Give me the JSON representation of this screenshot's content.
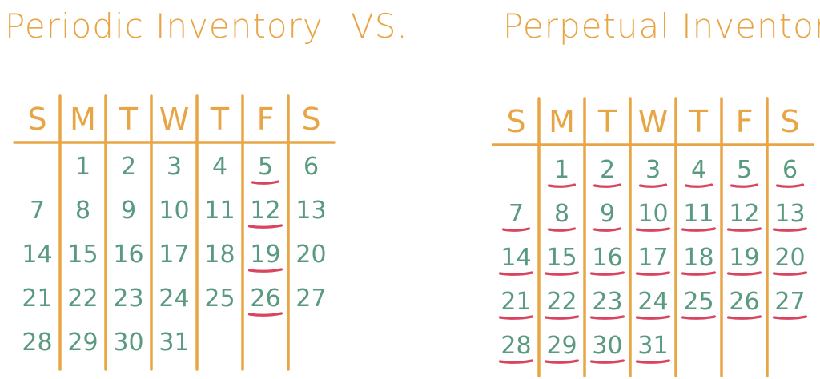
{
  "titles": {
    "left": "Periodic Inventory",
    "vs": "VS.",
    "right": "Perpetual Inventory"
  },
  "colors": {
    "header": "#e8a545",
    "numbers": "#5a9a80",
    "underline": "#d9455f"
  },
  "weekdays": [
    "S",
    "M",
    "T",
    "W",
    "T",
    "F",
    "S"
  ],
  "calendars": [
    {
      "id": "periodic",
      "first_weekday": 1,
      "days": 31,
      "underlined": [
        5,
        12,
        19,
        26
      ]
    },
    {
      "id": "perpetual",
      "first_weekday": 1,
      "days": 31,
      "underlined": [
        1,
        2,
        3,
        4,
        5,
        6,
        7,
        8,
        9,
        10,
        11,
        12,
        13,
        14,
        15,
        16,
        17,
        18,
        19,
        20,
        21,
        22,
        23,
        24,
        25,
        26,
        27,
        28,
        29,
        30,
        31
      ]
    }
  ]
}
